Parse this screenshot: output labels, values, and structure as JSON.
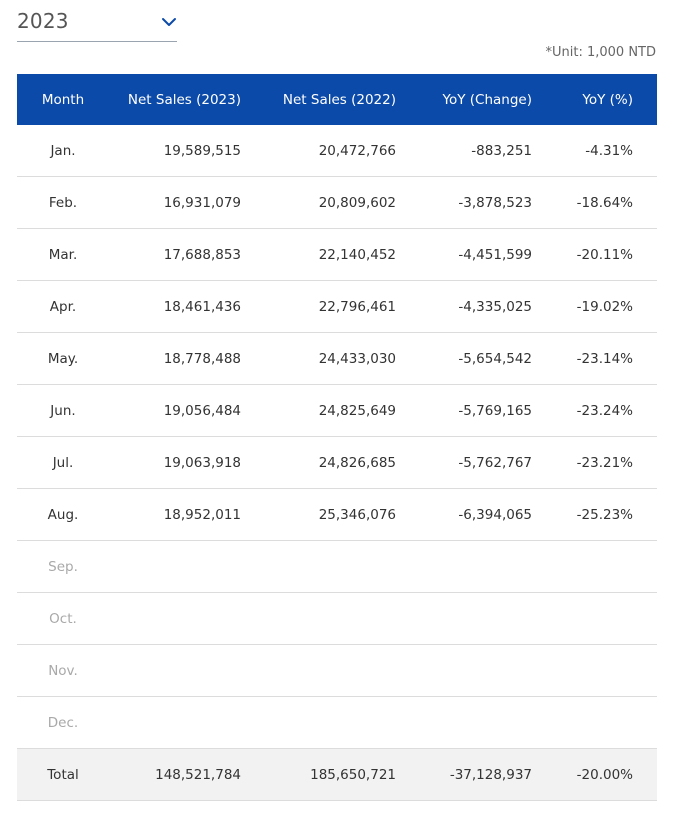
{
  "year_select": {
    "value": "2023",
    "icon": "chevron-down-icon"
  },
  "unit_note": "*Unit: 1,000 NTD",
  "table": {
    "headers": [
      "Month",
      "Net Sales (2023)",
      "Net Sales (2022)",
      "YoY (Change)",
      "YoY (%)"
    ],
    "rows": [
      {
        "month": "Jan.",
        "sales_2023": "19,589,515",
        "sales_2022": "20,472,766",
        "yoy_change": "-883,251",
        "yoy_pct": "-4.31%"
      },
      {
        "month": "Feb.",
        "sales_2023": "16,931,079",
        "sales_2022": "20,809,602",
        "yoy_change": "-3,878,523",
        "yoy_pct": "-18.64%"
      },
      {
        "month": "Mar.",
        "sales_2023": "17,688,853",
        "sales_2022": "22,140,452",
        "yoy_change": "-4,451,599",
        "yoy_pct": "-20.11%"
      },
      {
        "month": "Apr.",
        "sales_2023": "18,461,436",
        "sales_2022": "22,796,461",
        "yoy_change": "-4,335,025",
        "yoy_pct": "-19.02%"
      },
      {
        "month": "May.",
        "sales_2023": "18,778,488",
        "sales_2022": "24,433,030",
        "yoy_change": "-5,654,542",
        "yoy_pct": "-23.14%"
      },
      {
        "month": "Jun.",
        "sales_2023": "19,056,484",
        "sales_2022": "24,825,649",
        "yoy_change": "-5,769,165",
        "yoy_pct": "-23.24%"
      },
      {
        "month": "Jul.",
        "sales_2023": "19,063,918",
        "sales_2022": "24,826,685",
        "yoy_change": "-5,762,767",
        "yoy_pct": "-23.21%"
      },
      {
        "month": "Aug.",
        "sales_2023": "18,952,011",
        "sales_2022": "25,346,076",
        "yoy_change": "-6,394,065",
        "yoy_pct": "-25.23%"
      },
      {
        "month": "Sep.",
        "sales_2023": "",
        "sales_2022": "",
        "yoy_change": "",
        "yoy_pct": ""
      },
      {
        "month": "Oct.",
        "sales_2023": "",
        "sales_2022": "",
        "yoy_change": "",
        "yoy_pct": ""
      },
      {
        "month": "Nov.",
        "sales_2023": "",
        "sales_2022": "",
        "yoy_change": "",
        "yoy_pct": ""
      },
      {
        "month": "Dec.",
        "sales_2023": "",
        "sales_2022": "",
        "yoy_change": "",
        "yoy_pct": ""
      }
    ],
    "total": {
      "month": "Total",
      "sales_2023": "148,521,784",
      "sales_2022": "185,650,721",
      "yoy_change": "-37,128,937",
      "yoy_pct": "-20.00%"
    }
  },
  "colors": {
    "header_bg": "#0b4aa8",
    "header_text": "#ffffff",
    "muted_month": "#a9a9a9",
    "total_bg": "#f2f2f2",
    "chevron": "#0b4aa8"
  }
}
